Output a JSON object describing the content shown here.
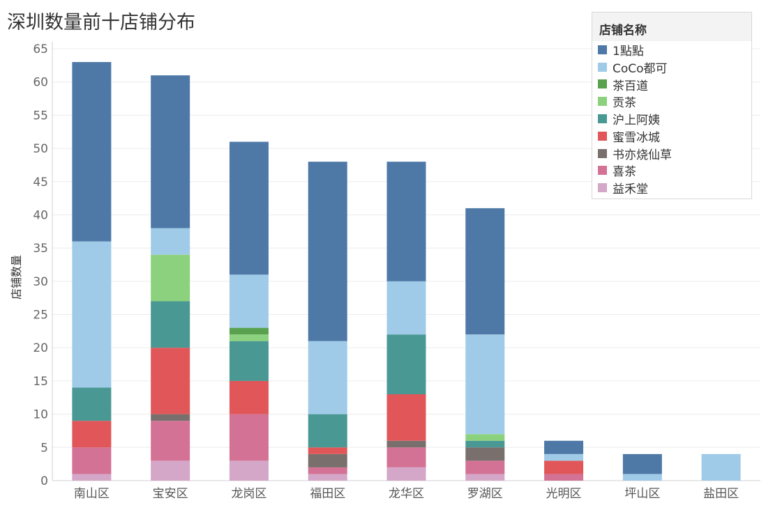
{
  "chart_data": {
    "type": "bar",
    "stacked": true,
    "title": "深圳数量前十店铺分布",
    "xlabel": "",
    "ylabel": "店铺数量",
    "ylim": [
      0,
      65
    ],
    "yticks": [
      0,
      5,
      10,
      15,
      20,
      25,
      30,
      35,
      40,
      45,
      50,
      55,
      60,
      65
    ],
    "grid": true,
    "legend_title": "店铺名称",
    "legend_position": "top-right",
    "categories": [
      "南山区",
      "宝安区",
      "龙岗区",
      "福田区",
      "龙华区",
      "罗湖区",
      "光明区",
      "坪山区",
      "盐田区"
    ],
    "series": [
      {
        "name": "益禾堂",
        "color": "#d4a6c8",
        "values": [
          1,
          3,
          3,
          1,
          2,
          1,
          0,
          0,
          0
        ]
      },
      {
        "name": "喜茶",
        "color": "#d37295",
        "values": [
          4,
          6,
          7,
          1,
          3,
          2,
          1,
          0,
          0
        ]
      },
      {
        "name": "书亦烧仙草",
        "color": "#79706e",
        "values": [
          0,
          1,
          0,
          2,
          1,
          2,
          0,
          0,
          0
        ]
      },
      {
        "name": "蜜雪冰城",
        "color": "#e15759",
        "values": [
          4,
          10,
          5,
          1,
          7,
          0,
          2,
          0,
          0
        ]
      },
      {
        "name": "沪上阿姨",
        "color": "#499894",
        "values": [
          5,
          7,
          6,
          5,
          9,
          1,
          0,
          0,
          0
        ]
      },
      {
        "name": "贡茶",
        "color": "#8cd17d",
        "values": [
          0,
          7,
          1,
          0,
          0,
          1,
          0,
          0,
          0
        ]
      },
      {
        "name": "茶百道",
        "color": "#59a14f",
        "values": [
          0,
          0,
          1,
          0,
          0,
          0,
          0,
          0,
          0
        ]
      },
      {
        "name": "CoCo都可",
        "color": "#a0cbe8",
        "values": [
          22,
          4,
          8,
          11,
          8,
          15,
          1,
          1,
          4
        ]
      },
      {
        "name": "1點點",
        "color": "#4e79a7",
        "values": [
          27,
          23,
          20,
          27,
          18,
          19,
          2,
          3,
          0
        ]
      }
    ],
    "legend_order": [
      "1點點",
      "CoCo都可",
      "茶百道",
      "贡茶",
      "沪上阿姨",
      "蜜雪冰城",
      "书亦烧仙草",
      "喜茶",
      "益禾堂"
    ]
  }
}
